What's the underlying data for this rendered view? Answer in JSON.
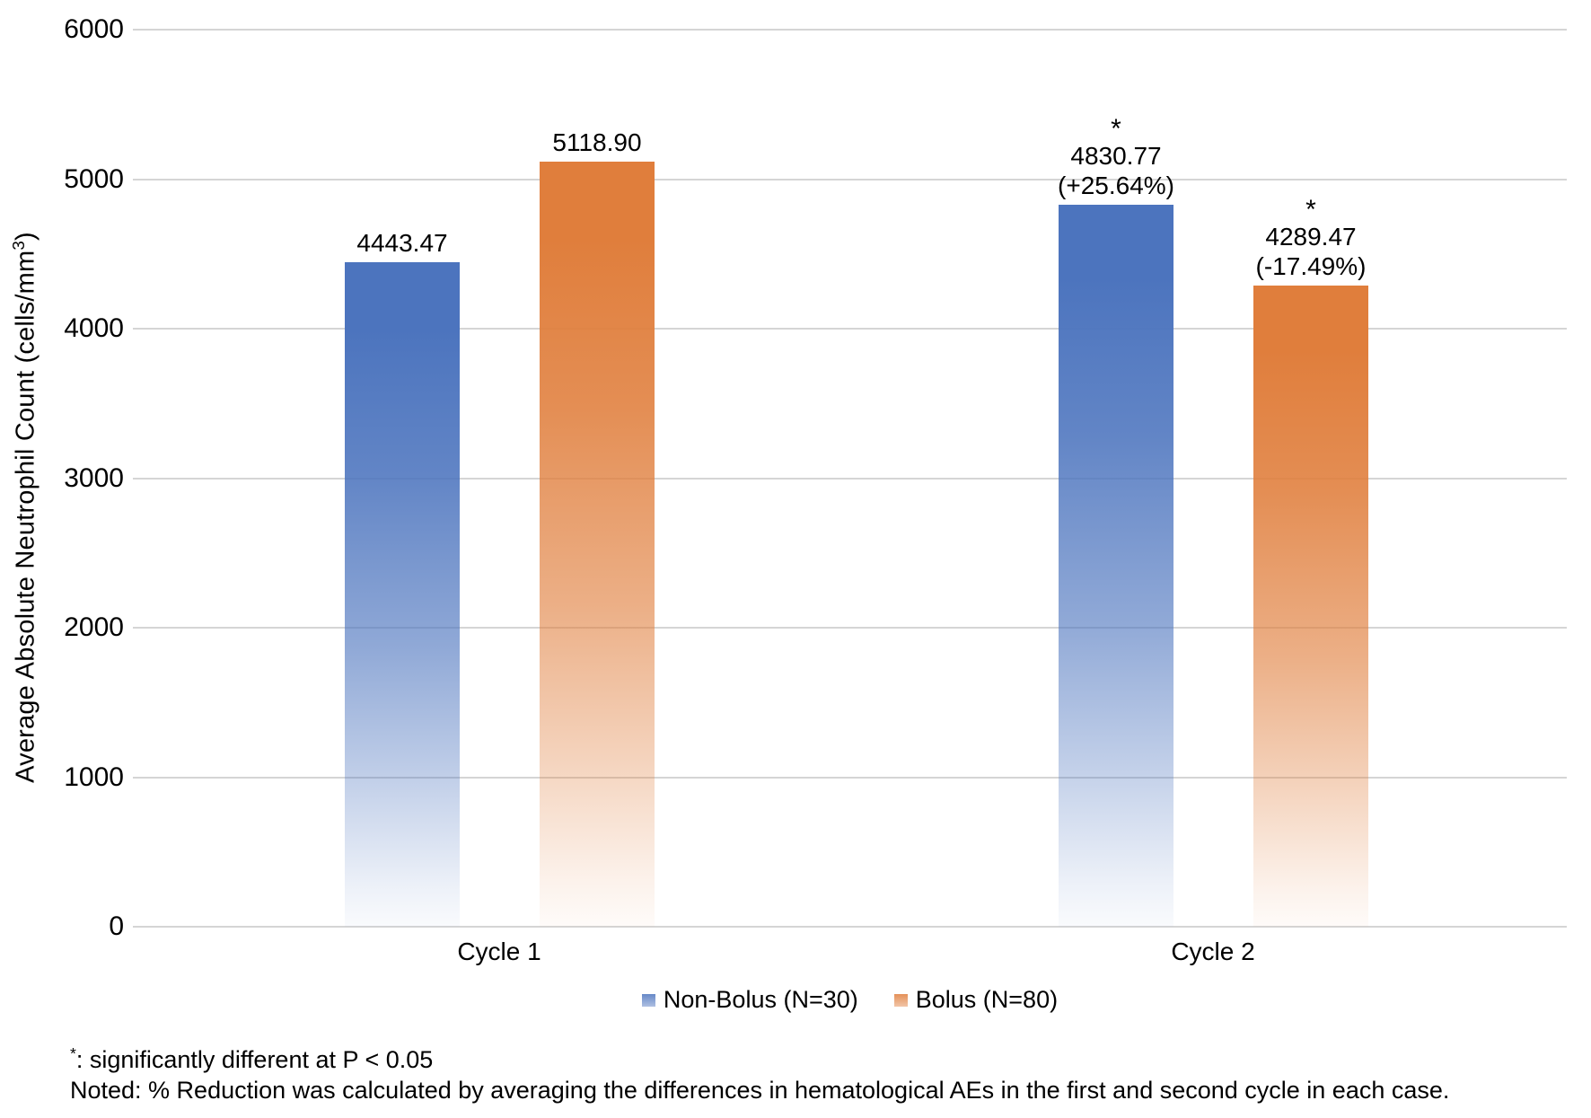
{
  "chart_data": {
    "type": "bar",
    "title": "",
    "categories": [
      "Cycle 1",
      "Cycle 2"
    ],
    "series": [
      {
        "name": "Non-Bolus (N=30)",
        "color": "#4C74BE"
      },
      {
        "name": "Bolus (N=80)",
        "color": "#E07E3C"
      }
    ],
    "bars": [
      {
        "category": "Cycle 1",
        "series_index": 0,
        "value": 4443.47,
        "label": "4443.47",
        "pct": "",
        "significant": false
      },
      {
        "category": "Cycle 1",
        "series_index": 1,
        "value": 5118.9,
        "label": "5118.90",
        "pct": "",
        "significant": false
      },
      {
        "category": "Cycle 2",
        "series_index": 0,
        "value": 4830.77,
        "label": "4830.77",
        "pct": "(+25.64%)",
        "significant": true
      },
      {
        "category": "Cycle 2",
        "series_index": 1,
        "value": 4289.47,
        "label": "4289.47",
        "pct": "(-17.49%)",
        "significant": true
      }
    ],
    "significance_marker": "*",
    "yaxis": {
      "label_prefix": "Average Absolute Neutrophil Count (cells/mm",
      "label_sup": "3",
      "label_suffix": ")",
      "ticks": [
        0,
        1000,
        2000,
        3000,
        4000,
        5000,
        6000
      ],
      "ylim": [
        0,
        6000
      ],
      "grid": true,
      "gridline_color": "#D5D5D5"
    },
    "xlabel": "",
    "legend_position": "bottom"
  },
  "notes": {
    "line1_sup": "*",
    "line1_text": ": significantly different at P < 0.05",
    "line2_text": "Noted: % Reduction was calculated by averaging the differences in hematological AEs in the first and second cycle in each case."
  }
}
